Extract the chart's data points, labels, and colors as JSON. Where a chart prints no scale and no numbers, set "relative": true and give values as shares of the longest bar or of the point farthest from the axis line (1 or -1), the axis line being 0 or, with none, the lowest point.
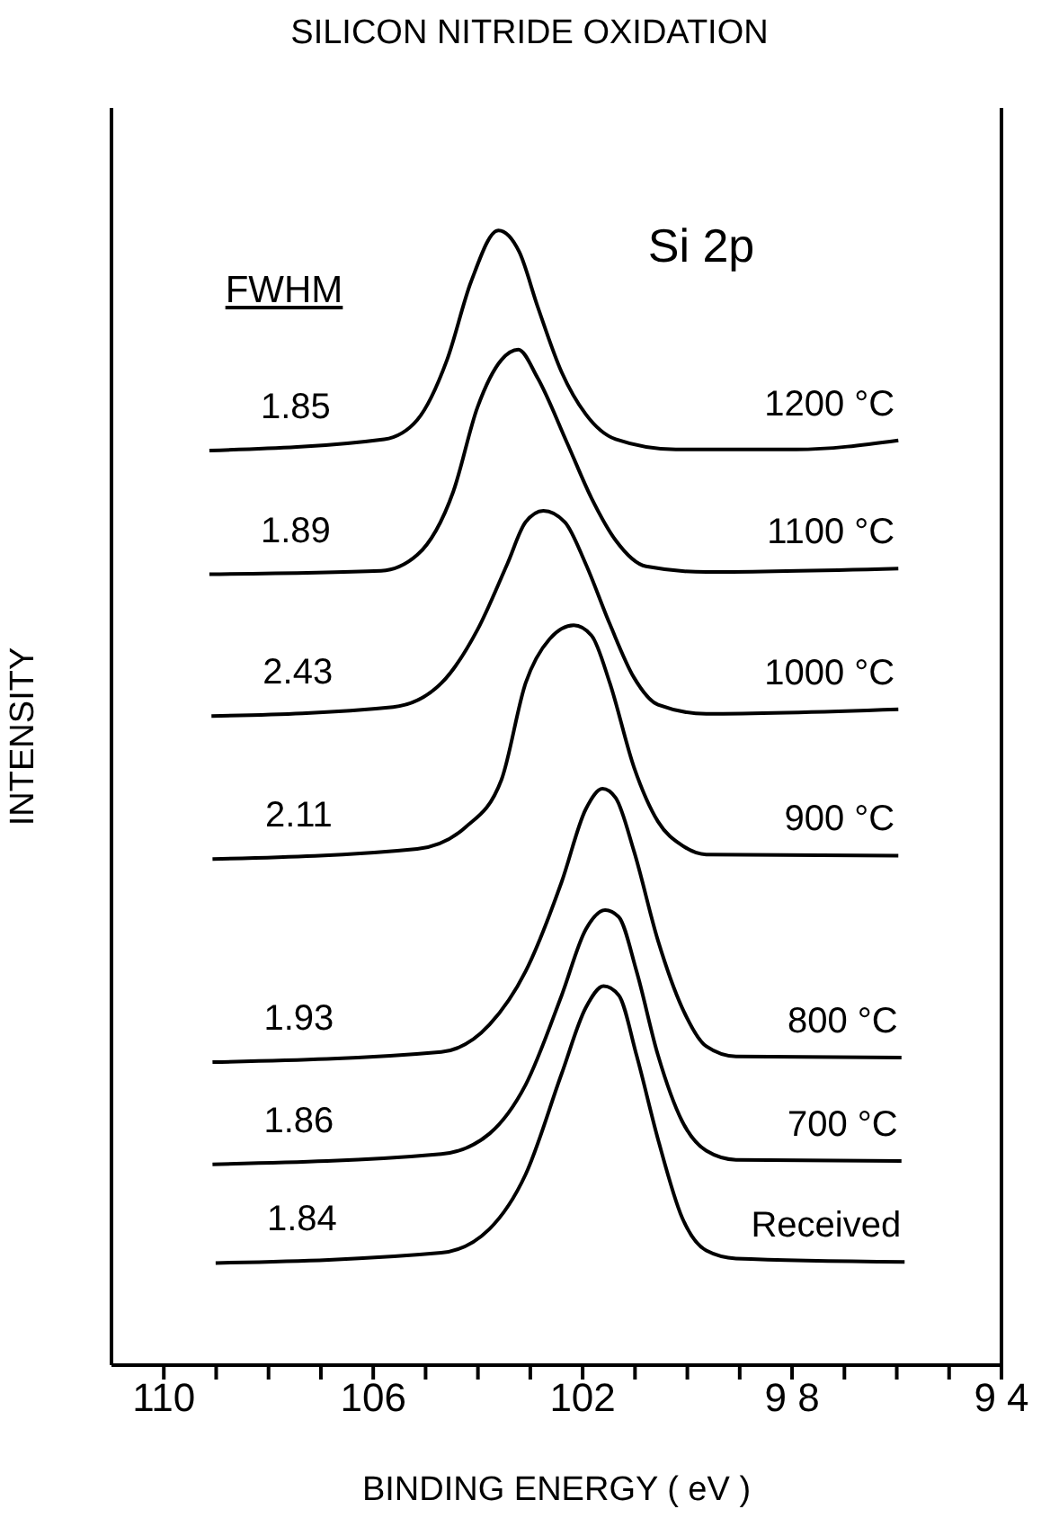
{
  "chart_data": {
    "type": "line",
    "title": "SILICON NITRIDE OXIDATION",
    "xlabel": "BINDING ENERGY ( eV )",
    "ylabel": "INTENSITY",
    "relative": true,
    "xlim": [
      111,
      94
    ],
    "xticks": [
      {
        "value": 110,
        "label": "110"
      },
      {
        "value": 109,
        "label": null
      },
      {
        "value": 108,
        "label": null
      },
      {
        "value": 107,
        "label": null
      },
      {
        "value": 106,
        "label": "106"
      },
      {
        "value": 105,
        "label": null
      },
      {
        "value": 104,
        "label": null
      },
      {
        "value": 103,
        "label": null
      },
      {
        "value": 102,
        "label": "102"
      },
      {
        "value": 101,
        "label": null
      },
      {
        "value": 100,
        "label": null
      },
      {
        "value": 99,
        "label": null
      },
      {
        "value": 98,
        "label": "9 8"
      },
      {
        "value": 97,
        "label": null
      },
      {
        "value": 96,
        "label": null
      },
      {
        "value": 95,
        "label": null
      },
      {
        "value": 94,
        "label": "9 4"
      }
    ],
    "series": [
      {
        "name": "1200 °C",
        "color": "#000000",
        "x": [
          109.13,
          105.79,
          105.16,
          104.59,
          104.13,
          103.61,
          103.21,
          102.86,
          102.4,
          101.94,
          101.37,
          100.22,
          97.92,
          95.97
        ],
        "values": [
          0.806,
          0.816,
          0.833,
          0.886,
          0.955,
          1,
          0.981,
          0.933,
          0.875,
          0.838,
          0.816,
          0.807,
          0.807,
          0.815
        ]
      },
      {
        "name": "1100 °C",
        "color": "#000000",
        "x": [
          109.13,
          105.85,
          105.16,
          104.47,
          104.01,
          103.55,
          103.23,
          102.86,
          102.29,
          101.83,
          101.37,
          100.79,
          99.64,
          95.97
        ],
        "values": [
          0.697,
          0.7,
          0.714,
          0.77,
          0.844,
          0.886,
          0.895,
          0.87,
          0.812,
          0.764,
          0.727,
          0.704,
          0.699,
          0.702
        ]
      },
      {
        "name": "1000 °C",
        "color": "#000000",
        "x": [
          109.09,
          105.62,
          104.7,
          104.01,
          103.44,
          103.09,
          102.75,
          102.34,
          101.94,
          101.48,
          101.02,
          100.56,
          99.64,
          95.97
        ],
        "values": [
          0.572,
          0.58,
          0.601,
          0.648,
          0.706,
          0.743,
          0.753,
          0.743,
          0.706,
          0.653,
          0.606,
          0.582,
          0.574,
          0.578
        ]
      },
      {
        "name": "900 °C",
        "color": "#000000",
        "x": [
          109.07,
          105.16,
          104.24,
          103.55,
          103.09,
          102.63,
          102.17,
          101.83,
          101.48,
          101.02,
          100.56,
          100.1,
          99.64,
          95.97
        ],
        "values": [
          0.446,
          0.455,
          0.474,
          0.516,
          0.601,
          0.64,
          0.652,
          0.643,
          0.601,
          0.527,
          0.479,
          0.458,
          0.45,
          0.449
        ]
      },
      {
        "name": "800 °C",
        "color": "#000000",
        "x": [
          109.07,
          104.7,
          103.78,
          103.09,
          102.4,
          101.94,
          101.62,
          101.37,
          101.02,
          100.56,
          100.1,
          99.64,
          99.07,
          95.91
        ],
        "values": [
          0.267,
          0.276,
          0.3,
          0.347,
          0.426,
          0.49,
          0.508,
          0.5,
          0.453,
          0.374,
          0.315,
          0.281,
          0.272,
          0.271
        ]
      },
      {
        "name": "700 °C",
        "color": "#000000",
        "x": [
          109.07,
          104.7,
          103.78,
          103.09,
          102.4,
          101.94,
          101.57,
          101.31,
          100.97,
          100.56,
          100.1,
          99.64,
          99.07,
          95.91
        ],
        "values": [
          0.177,
          0.186,
          0.204,
          0.247,
          0.326,
          0.384,
          0.401,
          0.395,
          0.347,
          0.273,
          0.215,
          0.189,
          0.181,
          0.18
        ]
      },
      {
        "name": "Received",
        "color": "#000000",
        "x": [
          109.01,
          104.7,
          103.78,
          103.09,
          102.4,
          101.94,
          101.6,
          101.31,
          100.97,
          100.56,
          100.1,
          99.64,
          99.07,
          95.85
        ],
        "values": [
          0.09,
          0.099,
          0.12,
          0.168,
          0.257,
          0.315,
          0.334,
          0.326,
          0.273,
          0.199,
          0.13,
          0.101,
          0.094,
          0.091
        ]
      }
    ],
    "annotations": [
      "Si 2p",
      "FWHM",
      "1.85",
      "1.89",
      "2.43",
      "2.11",
      "1.93",
      "1.86",
      "1.84"
    ]
  }
}
